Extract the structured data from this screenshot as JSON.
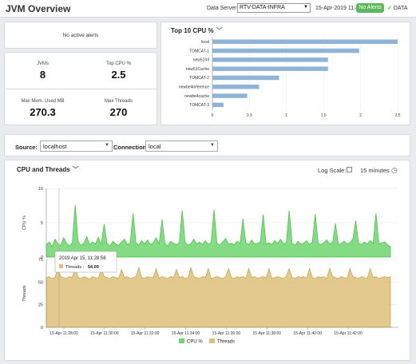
{
  "header": {
    "title": "JVM Overview",
    "data_server_label": "Data Server:",
    "data_server_value": "RTV-DATA-INFRA",
    "date": "15-Apr-2019 11:42",
    "alert_badge": "No Alerts",
    "data_status": "DATA"
  },
  "alerts": {
    "text": "No active alerts"
  },
  "kpis": {
    "jvms_label": "JVMs",
    "jvms_value": "8",
    "top_cpu_label": "Top CPU %",
    "top_cpu_value": "2.5",
    "max_mem_label": "Max Mem. Used MB",
    "max_mem_value": "270.3",
    "max_threads_label": "Max Threads",
    "max_threads_value": "270"
  },
  "top_cpu": {
    "title": "Top 10 CPU %",
    "chart_data": {
      "type": "bar",
      "orientation": "horizontal",
      "categories": [
        "local",
        "TOMCAT-1",
        "new51Inf",
        "new51Cache",
        "TOMCAT-2",
        "newbe4inference",
        "newbe4cache",
        "TOMCAT-3"
      ],
      "values": [
        2.5,
        1.98,
        1.56,
        1.56,
        0.9,
        0.63,
        0.47,
        0.15
      ],
      "xlim": [
        0,
        2.5
      ],
      "xticks": [
        "0",
        "0.5",
        "1",
        "1.5",
        "2",
        "2.5"
      ],
      "color": "#8fb4d8"
    }
  },
  "filters": {
    "source_label": "Source:",
    "source_value": "localhost",
    "connection_label": "Connection:",
    "connection_value": "local"
  },
  "trend": {
    "title": "CPU and Threads",
    "log_scale_label": "Log Scale:",
    "time_range": "15 minutes",
    "tooltip_time": "2019 Apr 15, 11:28:58",
    "tooltip_series": "Threads :",
    "tooltip_value": "54.00",
    "chart_data": {
      "type": "area",
      "x_ticks": [
        "15-Apr 11:28:00",
        "15-Apr 11:30:00",
        "15-Apr 11:32:00",
        "15-Apr 11:34:00",
        "15-Apr 11:36:00",
        "15-Apr 11:38:00",
        "15-Apr 11:40:00",
        "15-Apr 11:42:00"
      ],
      "series": [
        {
          "name": "CPU %",
          "color": "#6dd66d",
          "ylim": [
            0,
            10
          ],
          "yticks": [
            "0",
            "5",
            "10"
          ],
          "ylabel": "CPU %",
          "values": [
            1.8,
            2.2,
            1.5,
            2.6,
            1.9,
            1.7,
            2.8,
            2.0,
            1.6,
            2.1,
            7.6,
            2.3,
            1.7,
            2.0,
            3.0,
            1.8,
            2.2,
            1.9,
            2.9,
            1.8,
            4.8,
            2.0,
            1.6,
            2.3,
            1.9,
            1.7,
            2.2,
            2.6,
            1.8,
            2.0,
            6.4,
            2.1,
            1.7,
            2.4,
            1.9,
            2.5,
            1.8,
            2.1,
            2.8,
            1.9,
            5.5,
            2.0,
            1.6,
            2.3,
            2.0,
            1.8,
            2.1,
            6.8,
            2.2,
            1.7,
            2.0,
            2.6,
            1.9,
            2.2,
            1.8,
            2.4,
            1.9,
            2.1,
            6.9,
            2.0,
            1.7,
            2.2,
            2.7,
            1.9,
            2.0,
            1.8,
            2.3,
            2.0,
            5.6,
            2.1,
            1.8,
            2.5,
            1.9,
            2.0,
            2.2,
            6.2,
            1.9,
            2.1,
            1.8,
            2.4,
            2.0,
            2.6,
            1.9,
            2.1,
            6.8,
            2.0,
            1.7,
            2.3,
            1.9,
            2.0,
            2.4,
            1.8,
            2.2,
            6.3,
            2.0,
            1.8,
            2.1,
            2.5,
            1.9,
            2.2,
            4.9,
            1.8,
            2.0,
            2.3,
            1.9,
            2.1,
            2.6,
            5.3,
            2.0,
            1.8,
            2.2,
            1.9,
            2.4,
            2.0,
            6.4,
            1.9,
            2.1,
            2.2,
            1.8,
            1.5
          ]
        },
        {
          "name": "Threads",
          "color": "#dfc07a",
          "ylim": [
            0,
            75
          ],
          "yticks": [
            "0",
            "25",
            "50",
            "75"
          ],
          "ylabel": "Threads",
          "values": [
            55,
            56,
            54,
            55,
            65,
            56,
            55,
            54,
            56,
            55,
            68,
            55,
            54,
            56,
            55,
            53,
            56,
            55,
            54,
            65,
            56,
            55,
            54,
            56,
            55,
            54,
            64,
            55,
            56,
            54,
            55,
            56,
            66,
            55,
            54,
            56,
            55,
            55,
            65,
            54,
            56,
            55,
            54,
            56,
            55,
            64,
            55,
            56,
            54,
            55,
            66,
            56,
            55,
            54,
            56,
            55,
            65,
            54,
            55,
            56,
            55,
            54,
            56,
            65,
            55,
            54,
            56,
            55,
            56,
            54,
            65,
            55,
            56,
            54,
            55,
            56,
            55,
            65,
            54,
            55,
            56,
            55,
            54,
            56,
            65,
            55,
            54,
            56,
            55,
            56,
            54,
            65,
            55,
            54,
            56,
            55,
            56,
            54,
            65,
            56,
            55,
            54,
            56,
            55,
            54,
            65,
            56,
            55,
            54,
            56,
            55,
            54,
            65,
            55,
            56,
            54,
            55,
            56,
            55,
            56
          ]
        }
      ]
    }
  }
}
